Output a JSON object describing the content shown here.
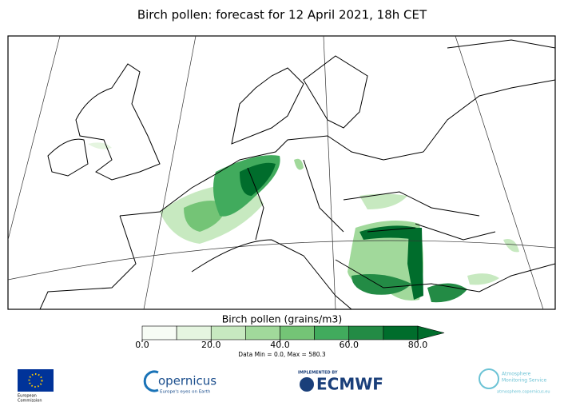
{
  "title": "Birch pollen: forecast for 12 April 2021, 18h CET",
  "colorbar": {
    "label": "Birch pollen (grains/m3)",
    "range": [
      0,
      80
    ],
    "levels": [
      0,
      10,
      20,
      30,
      40,
      50,
      60,
      70,
      80
    ],
    "colors": [
      "#f7fcf5",
      "#e5f5e0",
      "#c7e9c0",
      "#a1d99b",
      "#74c476",
      "#41ab5d",
      "#238b45",
      "#006d2c"
    ],
    "extend_color": "#006d2c",
    "ticks": [
      {
        "value": 0,
        "label": "0.0"
      },
      {
        "value": 20,
        "label": "20.0"
      },
      {
        "value": 40,
        "label": "40.0"
      },
      {
        "value": 60,
        "label": "60.0"
      },
      {
        "value": 80,
        "label": "80.0"
      }
    ],
    "stats": "Data Min = 0.0, Max = 580.3"
  },
  "logos": {
    "ec": [
      "European",
      "Commission"
    ],
    "copernicus": {
      "name": "opernicus",
      "tagline": "Europe's eyes on Earth"
    },
    "ecmwf": {
      "prefix": "IMPLEMENTED BY",
      "name": "ECMWF"
    },
    "cams": {
      "name": [
        "Atmosphere",
        "Monitoring Service"
      ],
      "url": "atmosphere.copernicus.eu"
    }
  }
}
